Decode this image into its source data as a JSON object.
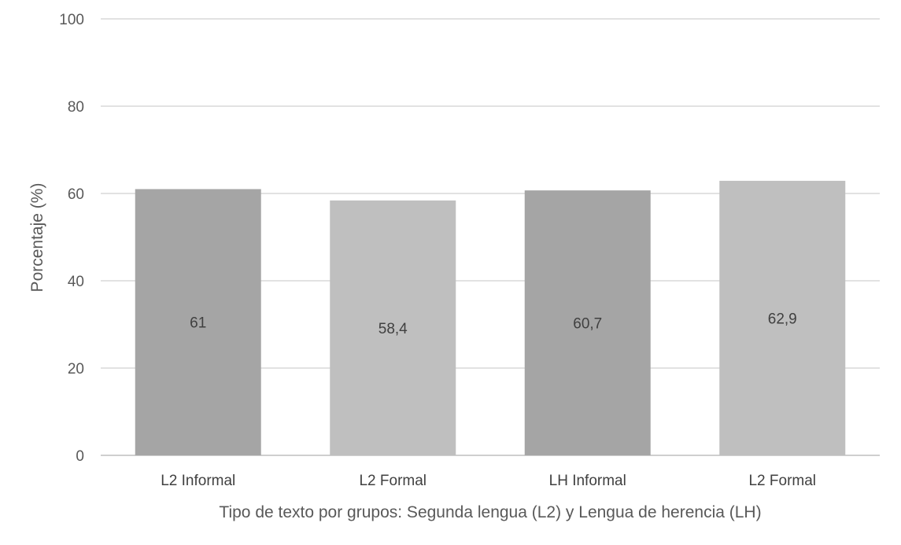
{
  "chart_data": {
    "type": "bar",
    "categories": [
      "L2 Informal",
      "L2 Formal",
      "LH Informal",
      "L2 Formal"
    ],
    "values": [
      61,
      58.4,
      60.7,
      62.9
    ],
    "value_labels": [
      "61",
      "58,4",
      "60,7",
      "62,9"
    ],
    "title": "",
    "xlabel": "Tipo de texto por grupos: Segunda lengua (L2) y Lengua de herencia (LH)",
    "ylabel": "Porcentaje (%)",
    "ylim": [
      0,
      100
    ],
    "yticks": [
      0,
      20,
      40,
      60,
      80,
      100
    ],
    "grid": true,
    "legend": "none",
    "colors": [
      "#a5a5a5",
      "#bfbfbf",
      "#a5a5a5",
      "#bfbfbf"
    ]
  }
}
